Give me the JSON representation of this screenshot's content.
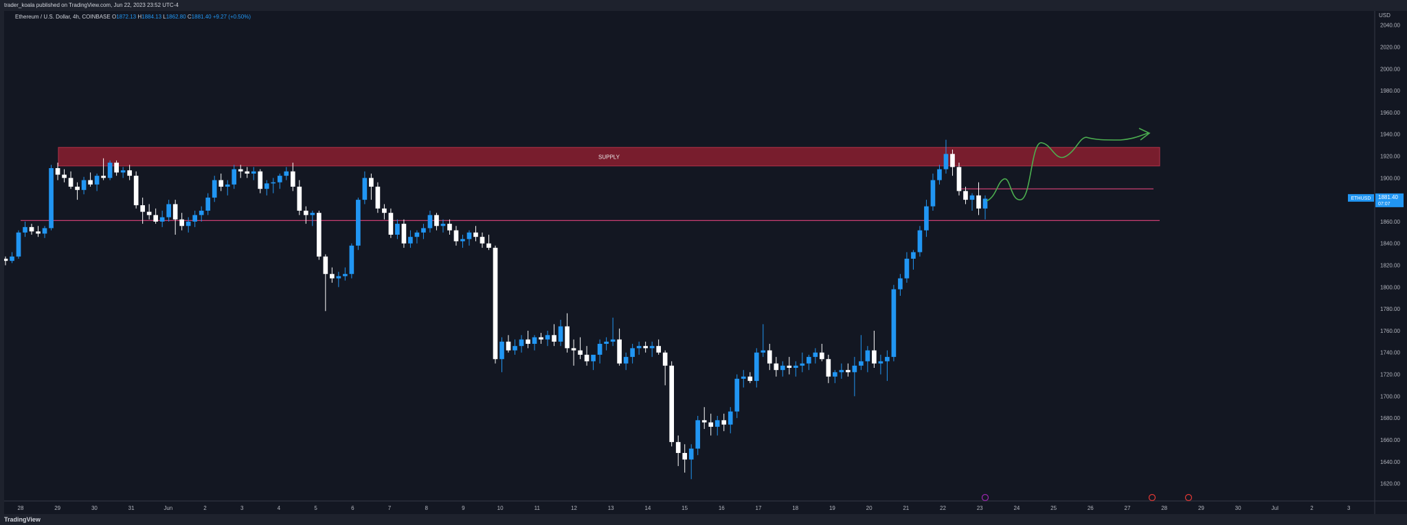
{
  "header": {
    "published": "trader_koala published on TradingView.com, Jun 22, 2023 23:52 UTC-4"
  },
  "legend": {
    "symbol": "Ethereum / U.S. Dollar, 4h, COINBASE",
    "open_label": "O",
    "open": "1872.13",
    "high_label": "H",
    "high": "1884.13",
    "low_label": "L",
    "low": "1862.80",
    "close_label": "C",
    "close": "1881.40",
    "change": "+9.27 (+0.50%)"
  },
  "footer": {
    "brand": "TradingView"
  },
  "price_axis": {
    "currency": "USD",
    "badge_symbol": "ETHUSD",
    "badge_price": "1881.40",
    "badge_timer": "07:07"
  },
  "annotations": {
    "supply_label": "SUPPLY",
    "supply_zone": [
      1911,
      1928
    ],
    "lower_line": 1861,
    "upper_line": 1890
  },
  "colors": {
    "background": "#131722",
    "bull": "#2196f3",
    "bear": "#ffffff",
    "supply_fill": "#8b1e2f",
    "level_line": "#e0457b",
    "arrow": "#4caf50",
    "axis_text": "#b2b5be"
  },
  "chart_data": {
    "type": "candlestick",
    "title": "Ethereum / U.S. Dollar, 4h, COINBASE",
    "ylim": [
      1604,
      2053
    ],
    "y_ticks": [
      1620,
      1640,
      1660,
      1680,
      1700,
      1720,
      1740,
      1760,
      1780,
      1800,
      1820,
      1840,
      1860,
      1880,
      1900,
      1920,
      1940,
      1960,
      1980,
      2000,
      2020,
      2040
    ],
    "x_tick_labels": [
      "28",
      "29",
      "30",
      "31",
      "Jun",
      "2",
      "3",
      "4",
      "5",
      "6",
      "7",
      "8",
      "9",
      "10",
      "11",
      "12",
      "13",
      "14",
      "15",
      "16",
      "17",
      "18",
      "19",
      "20",
      "21",
      "22",
      "23",
      "24",
      "25",
      "26",
      "27",
      "28",
      "29",
      "30",
      "Jul",
      "2",
      "3"
    ],
    "grid": false,
    "candles": [
      [
        1826,
        1828,
        1820,
        1824
      ],
      [
        1824,
        1832,
        1822,
        1828
      ],
      [
        1828,
        1852,
        1826,
        1850
      ],
      [
        1850,
        1860,
        1846,
        1855
      ],
      [
        1855,
        1858,
        1848,
        1851
      ],
      [
        1851,
        1856,
        1846,
        1849
      ],
      [
        1849,
        1856,
        1845,
        1854
      ],
      [
        1854,
        1912,
        1852,
        1909
      ],
      [
        1909,
        1914,
        1898,
        1903
      ],
      [
        1903,
        1908,
        1896,
        1900
      ],
      [
        1900,
        1906,
        1890,
        1892
      ],
      [
        1892,
        1896,
        1880,
        1889
      ],
      [
        1889,
        1901,
        1885,
        1898
      ],
      [
        1898,
        1905,
        1892,
        1894
      ],
      [
        1894,
        1904,
        1888,
        1902
      ],
      [
        1902,
        1918,
        1898,
        1900
      ],
      [
        1900,
        1916,
        1898,
        1914
      ],
      [
        1914,
        1916,
        1902,
        1905
      ],
      [
        1905,
        1910,
        1900,
        1907
      ],
      [
        1907,
        1912,
        1898,
        1902
      ],
      [
        1902,
        1906,
        1872,
        1875
      ],
      [
        1875,
        1882,
        1858,
        1869
      ],
      [
        1869,
        1876,
        1862,
        1866
      ],
      [
        1866,
        1872,
        1858,
        1860
      ],
      [
        1860,
        1870,
        1855,
        1864
      ],
      [
        1864,
        1880,
        1860,
        1876
      ],
      [
        1876,
        1880,
        1848,
        1862
      ],
      [
        1862,
        1868,
        1852,
        1856
      ],
      [
        1856,
        1864,
        1850,
        1860
      ],
      [
        1860,
        1870,
        1855,
        1866
      ],
      [
        1866,
        1874,
        1860,
        1870
      ],
      [
        1870,
        1886,
        1866,
        1882
      ],
      [
        1882,
        1902,
        1878,
        1898
      ],
      [
        1898,
        1904,
        1888,
        1892
      ],
      [
        1892,
        1898,
        1884,
        1894
      ],
      [
        1894,
        1912,
        1890,
        1908
      ],
      [
        1908,
        1912,
        1900,
        1906
      ],
      [
        1906,
        1910,
        1900,
        1904
      ],
      [
        1904,
        1910,
        1898,
        1906
      ],
      [
        1906,
        1908,
        1886,
        1890
      ],
      [
        1890,
        1898,
        1884,
        1895
      ],
      [
        1895,
        1900,
        1886,
        1896
      ],
      [
        1896,
        1904,
        1890,
        1902
      ],
      [
        1902,
        1910,
        1898,
        1906
      ],
      [
        1906,
        1914,
        1888,
        1892
      ],
      [
        1892,
        1898,
        1866,
        1870
      ],
      [
        1870,
        1874,
        1858,
        1866
      ],
      [
        1866,
        1870,
        1856,
        1868
      ],
      [
        1868,
        1870,
        1825,
        1828
      ],
      [
        1828,
        1830,
        1778,
        1812
      ],
      [
        1812,
        1818,
        1804,
        1808
      ],
      [
        1808,
        1814,
        1800,
        1810
      ],
      [
        1810,
        1818,
        1806,
        1812
      ],
      [
        1812,
        1840,
        1808,
        1838
      ],
      [
        1838,
        1882,
        1834,
        1880
      ],
      [
        1880,
        1906,
        1876,
        1900
      ],
      [
        1900,
        1904,
        1880,
        1892
      ],
      [
        1892,
        1896,
        1868,
        1872
      ],
      [
        1872,
        1876,
        1862,
        1868
      ],
      [
        1868,
        1872,
        1845,
        1848
      ],
      [
        1848,
        1862,
        1844,
        1858
      ],
      [
        1858,
        1862,
        1836,
        1840
      ],
      [
        1840,
        1852,
        1836,
        1846
      ],
      [
        1846,
        1852,
        1840,
        1850
      ],
      [
        1850,
        1858,
        1844,
        1854
      ],
      [
        1854,
        1870,
        1850,
        1866
      ],
      [
        1866,
        1868,
        1852,
        1856
      ],
      [
        1856,
        1862,
        1850,
        1858
      ],
      [
        1858,
        1862,
        1848,
        1852
      ],
      [
        1852,
        1856,
        1838,
        1842
      ],
      [
        1842,
        1848,
        1836,
        1844
      ],
      [
        1844,
        1852,
        1838,
        1850
      ],
      [
        1850,
        1856,
        1842,
        1846
      ],
      [
        1846,
        1850,
        1836,
        1840
      ],
      [
        1840,
        1848,
        1834,
        1836
      ],
      [
        1836,
        1838,
        1730,
        1734
      ],
      [
        1734,
        1754,
        1722,
        1750
      ],
      [
        1750,
        1756,
        1740,
        1742
      ],
      [
        1742,
        1752,
        1738,
        1746
      ],
      [
        1746,
        1756,
        1740,
        1752
      ],
      [
        1752,
        1760,
        1744,
        1748
      ],
      [
        1748,
        1756,
        1742,
        1754
      ],
      [
        1754,
        1758,
        1748,
        1752
      ],
      [
        1752,
        1760,
        1746,
        1756
      ],
      [
        1756,
        1766,
        1746,
        1750
      ],
      [
        1750,
        1770,
        1746,
        1764
      ],
      [
        1764,
        1776,
        1740,
        1744
      ],
      [
        1744,
        1752,
        1728,
        1742
      ],
      [
        1742,
        1754,
        1734,
        1738
      ],
      [
        1738,
        1746,
        1728,
        1732
      ],
      [
        1732,
        1736,
        1724,
        1738
      ],
      [
        1738,
        1752,
        1730,
        1748
      ],
      [
        1748,
        1754,
        1742,
        1750
      ],
      [
        1750,
        1772,
        1746,
        1752
      ],
      [
        1752,
        1762,
        1728,
        1730
      ],
      [
        1730,
        1740,
        1724,
        1736
      ],
      [
        1736,
        1748,
        1730,
        1744
      ],
      [
        1744,
        1750,
        1738,
        1746
      ],
      [
        1746,
        1750,
        1740,
        1744
      ],
      [
        1744,
        1750,
        1736,
        1746
      ],
      [
        1746,
        1752,
        1738,
        1740
      ],
      [
        1740,
        1742,
        1710,
        1728
      ],
      [
        1728,
        1732,
        1654,
        1658
      ],
      [
        1658,
        1664,
        1636,
        1648
      ],
      [
        1648,
        1656,
        1630,
        1642
      ],
      [
        1642,
        1656,
        1624,
        1652
      ],
      [
        1652,
        1682,
        1646,
        1678
      ],
      [
        1678,
        1690,
        1670,
        1676
      ],
      [
        1676,
        1684,
        1664,
        1672
      ],
      [
        1672,
        1682,
        1664,
        1678
      ],
      [
        1678,
        1684,
        1668,
        1674
      ],
      [
        1674,
        1690,
        1666,
        1686
      ],
      [
        1686,
        1720,
        1680,
        1716
      ],
      [
        1716,
        1724,
        1708,
        1718
      ],
      [
        1718,
        1722,
        1712,
        1714
      ],
      [
        1714,
        1744,
        1708,
        1740
      ],
      [
        1740,
        1766,
        1736,
        1742
      ],
      [
        1742,
        1748,
        1724,
        1730
      ],
      [
        1730,
        1736,
        1718,
        1724
      ],
      [
        1724,
        1732,
        1718,
        1728
      ],
      [
        1728,
        1736,
        1720,
        1726
      ],
      [
        1726,
        1732,
        1718,
        1728
      ],
      [
        1728,
        1740,
        1722,
        1730
      ],
      [
        1730,
        1738,
        1724,
        1736
      ],
      [
        1736,
        1744,
        1730,
        1740
      ],
      [
        1740,
        1748,
        1732,
        1734
      ],
      [
        1734,
        1738,
        1712,
        1718
      ],
      [
        1718,
        1724,
        1712,
        1722
      ],
      [
        1722,
        1730,
        1716,
        1724
      ],
      [
        1724,
        1730,
        1718,
        1722
      ],
      [
        1722,
        1736,
        1700,
        1728
      ],
      [
        1728,
        1756,
        1724,
        1732
      ],
      [
        1732,
        1746,
        1722,
        1742
      ],
      [
        1742,
        1760,
        1726,
        1730
      ],
      [
        1730,
        1738,
        1720,
        1732
      ],
      [
        1732,
        1742,
        1714,
        1736
      ],
      [
        1736,
        1802,
        1732,
        1798
      ],
      [
        1798,
        1812,
        1792,
        1808
      ],
      [
        1808,
        1832,
        1804,
        1826
      ],
      [
        1826,
        1834,
        1816,
        1832
      ],
      [
        1832,
        1856,
        1828,
        1852
      ],
      [
        1852,
        1880,
        1846,
        1874
      ],
      [
        1874,
        1904,
        1870,
        1898
      ],
      [
        1898,
        1912,
        1894,
        1908
      ],
      [
        1908,
        1935,
        1904,
        1922
      ],
      [
        1922,
        1926,
        1902,
        1910
      ],
      [
        1910,
        1914,
        1884,
        1888
      ],
      [
        1888,
        1892,
        1876,
        1880
      ],
      [
        1880,
        1886,
        1870,
        1884
      ],
      [
        1884,
        1896,
        1866,
        1872
      ],
      [
        1872,
        1884,
        1862,
        1881
      ]
    ]
  }
}
